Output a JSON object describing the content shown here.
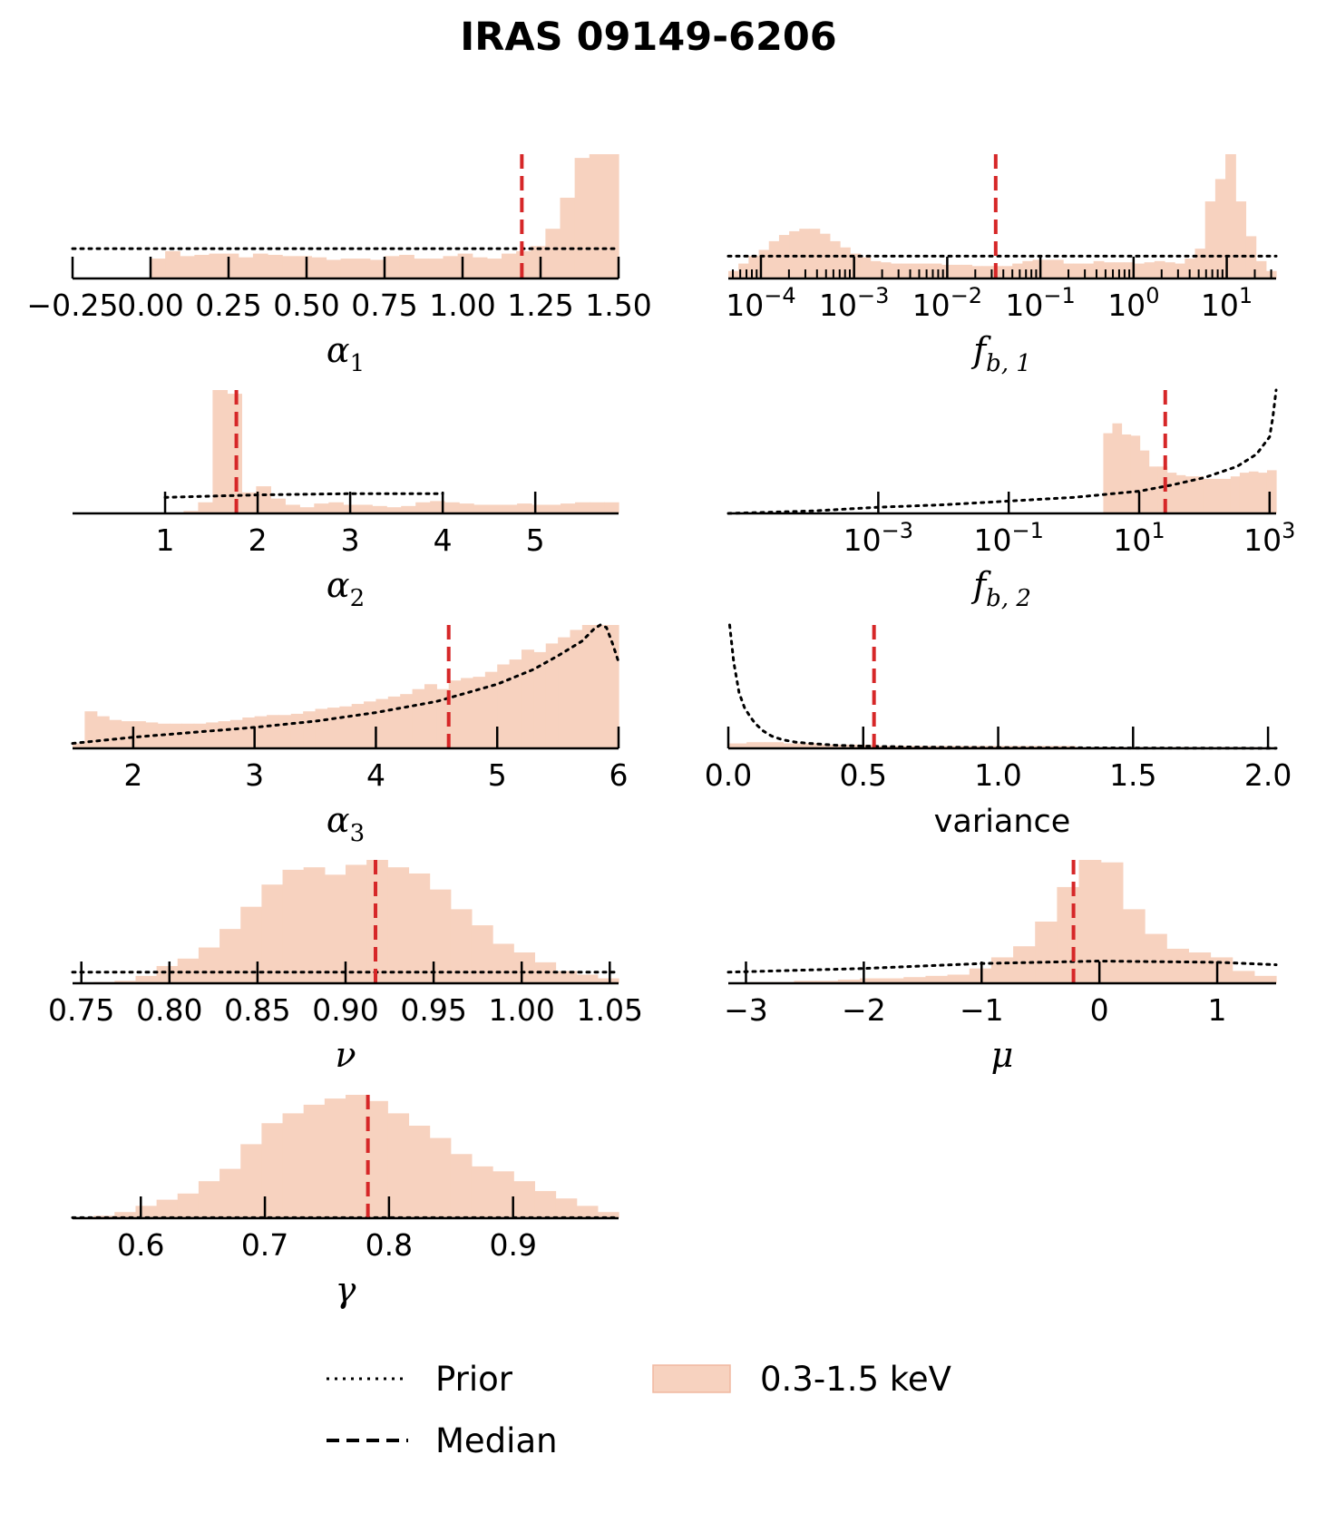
{
  "figure_title": "IRAS 09149-6206",
  "colors": {
    "hist": "#f7d2bf",
    "hist_edge": "#f0b8a0",
    "median": "#d62728",
    "prior": "#000000",
    "axis": "#000000"
  },
  "legend": {
    "prior_label": "Prior",
    "median_label": "Median",
    "hist_label": "0.3-1.5 keV"
  },
  "chart_data": [
    {
      "id": "alpha1",
      "type": "bar",
      "scale": "linear",
      "xlabel_sym": "α",
      "xlabel_sub": "1",
      "xlim": [
        -0.25,
        1.5
      ],
      "ticks": [
        -0.25,
        0.0,
        0.25,
        0.5,
        0.75,
        1.0,
        1.25,
        1.5
      ],
      "tick_labels": [
        "−0.25",
        "0.00",
        "0.25",
        "0.50",
        "0.75",
        "1.00",
        "1.25",
        "1.50"
      ],
      "hist_range": [
        0.0,
        1.5
      ],
      "hist": [
        0.16,
        0.22,
        0.18,
        0.19,
        0.2,
        0.2,
        0.17,
        0.2,
        0.19,
        0.18,
        0.18,
        0.17,
        0.15,
        0.16,
        0.16,
        0.15,
        0.18,
        0.19,
        0.16,
        0.16,
        0.18,
        0.2,
        0.17,
        0.16,
        0.2,
        0.22,
        0.26,
        0.4,
        0.65,
        0.97,
        1.0,
        1.0
      ],
      "median": 1.19,
      "prior": {
        "kind": "flat",
        "x": [
          -0.25,
          1.5
        ],
        "y": 0.24
      }
    },
    {
      "id": "fb1",
      "type": "bar",
      "scale": "log",
      "xlabel_sym": "f",
      "xlabel_sub": "b, 1",
      "xlim": [
        -4.35,
        1.53
      ],
      "ticks": [
        -4,
        -3,
        -2,
        -1,
        0,
        1
      ],
      "tick_labels": [
        [
          "10",
          "−4"
        ],
        [
          "10",
          "−3"
        ],
        [
          "10",
          "−2"
        ],
        [
          "10",
          "−1"
        ],
        [
          "10",
          "0"
        ],
        [
          "10",
          "1"
        ]
      ],
      "minor_ticks": true,
      "hist_range": [
        -4.35,
        1.53
      ],
      "hist": [
        0.06,
        0.12,
        0.18,
        0.23,
        0.3,
        0.35,
        0.38,
        0.4,
        0.4,
        0.36,
        0.3,
        0.25,
        0.2,
        0.17,
        0.14,
        0.13,
        0.12,
        0.12,
        0.12,
        0.12,
        0.12,
        0.11,
        0.11,
        0.11,
        0.1,
        0.1,
        0.1,
        0.1,
        0.12,
        0.14,
        0.15,
        0.15,
        0.15,
        0.12,
        0.12,
        0.12,
        0.14,
        0.13,
        0.13,
        0.13,
        0.12,
        0.13,
        0.14,
        0.13,
        0.12,
        0.16,
        0.24,
        0.62,
        0.8,
        1.0,
        0.62,
        0.34,
        0.14,
        0.06
      ],
      "median": -1.48,
      "prior": {
        "kind": "flat",
        "x": [
          -4.35,
          1.53
        ],
        "y": 0.18
      }
    },
    {
      "id": "alpha2",
      "type": "bar",
      "scale": "linear",
      "xlabel_sym": "α",
      "xlabel_sub": "2",
      "xlim": [
        0.0,
        5.9
      ],
      "ticks": [
        1,
        2,
        3,
        4,
        5
      ],
      "tick_labels": [
        "1",
        "2",
        "3",
        "4",
        "5"
      ],
      "hist_range": [
        1.2,
        5.9
      ],
      "hist": [
        0.02,
        0.09,
        1.0,
        0.97,
        0.17,
        0.22,
        0.12,
        0.07,
        0.05,
        0.08,
        0.09,
        0.07,
        0.07,
        0.06,
        0.05,
        0.06,
        0.09,
        0.1,
        0.09,
        0.08,
        0.07,
        0.07,
        0.07,
        0.08,
        0.07,
        0.07,
        0.08,
        0.09,
        0.09,
        0.09
      ],
      "median": 1.77,
      "prior": {
        "kind": "curve",
        "x": [
          1.0,
          2.0,
          3.0,
          4.0
        ],
        "y": [
          0.13,
          0.15,
          0.16,
          0.16
        ]
      }
    },
    {
      "id": "fb2",
      "type": "bar",
      "scale": "log",
      "xlabel_sym": "f",
      "xlabel_sub": "b, 2",
      "xlim": [
        -5.3,
        3.1
      ],
      "ticks": [
        -3,
        -1,
        1,
        3
      ],
      "tick_labels": [
        [
          "10",
          "−3"
        ],
        [
          "10",
          "−1"
        ],
        [
          "10",
          "1"
        ],
        [
          "10",
          "3"
        ]
      ],
      "hist_range": [
        0.45,
        3.1
      ],
      "hist": [
        0.65,
        0.73,
        0.64,
        0.63,
        0.51,
        0.38,
        0.38,
        0.33,
        0.31,
        0.3,
        0.3,
        0.28,
        0.28,
        0.28,
        0.3,
        0.33,
        0.34,
        0.33,
        0.35
      ],
      "median": 1.4,
      "prior": {
        "kind": "curve",
        "x": [
          -5.3,
          -4,
          -3,
          -2,
          -1,
          0,
          1,
          1.5,
          2,
          2.5,
          2.8,
          3.0,
          3.05,
          3.1
        ],
        "y": [
          0.0,
          0.02,
          0.05,
          0.07,
          0.1,
          0.13,
          0.18,
          0.23,
          0.29,
          0.38,
          0.48,
          0.62,
          0.78,
          1.0
        ]
      }
    },
    {
      "id": "alpha3",
      "type": "bar",
      "scale": "linear",
      "xlabel_sym": "α",
      "xlabel_sub": "3",
      "xlim": [
        1.5,
        6.0
      ],
      "ticks": [
        2,
        3,
        4,
        5,
        6
      ],
      "tick_labels": [
        "2",
        "3",
        "4",
        "5",
        "6"
      ],
      "hist_range": [
        1.5,
        6.0
      ],
      "hist": [
        0.04,
        0.3,
        0.26,
        0.23,
        0.22,
        0.22,
        0.21,
        0.2,
        0.2,
        0.2,
        0.2,
        0.21,
        0.22,
        0.23,
        0.25,
        0.26,
        0.27,
        0.27,
        0.28,
        0.3,
        0.32,
        0.33,
        0.34,
        0.36,
        0.38,
        0.4,
        0.42,
        0.44,
        0.48,
        0.52,
        0.48,
        0.55,
        0.57,
        0.58,
        0.62,
        0.68,
        0.72,
        0.8,
        0.78,
        0.85,
        0.9,
        0.96,
        1.0,
        1.0,
        1.0
      ],
      "median": 4.6,
      "prior": {
        "kind": "curve",
        "x": [
          1.5,
          2.0,
          2.5,
          3.0,
          3.5,
          4.0,
          4.5,
          5.0,
          5.3,
          5.5,
          5.7,
          5.8,
          5.85,
          5.9,
          5.95,
          6.0
        ],
        "y": [
          0.04,
          0.09,
          0.13,
          0.17,
          0.22,
          0.29,
          0.38,
          0.52,
          0.64,
          0.75,
          0.87,
          0.97,
          1.0,
          0.98,
          0.85,
          0.7
        ]
      }
    },
    {
      "id": "variance",
      "type": "bar",
      "scale": "linear",
      "xlabel_text": "variance",
      "xlim": [
        0.0,
        2.03
      ],
      "ticks": [
        0.0,
        0.5,
        1.0,
        1.5,
        2.0
      ],
      "tick_labels": [
        "0.0",
        "0.5",
        "1.0",
        "1.5",
        "2.0"
      ],
      "hist_range": [
        0.0,
        2.03
      ],
      "hist": [
        0.04,
        0.05,
        0.05,
        0.04,
        0.04,
        0.03,
        0.03,
        0.03,
        0.02,
        0.02,
        0.02,
        0.02,
        0.02,
        0.02,
        0.02,
        0.02,
        0.02,
        0.02,
        0.02,
        0.01,
        0.01,
        0.01,
        0.01,
        0.01,
        0.01,
        0.01,
        0.01,
        0.01,
        0.01,
        0.01
      ],
      "median": 0.54,
      "prior": {
        "kind": "curve",
        "x": [
          0.005,
          0.02,
          0.04,
          0.06,
          0.08,
          0.1,
          0.13,
          0.16,
          0.2,
          0.25,
          0.3,
          0.4,
          0.5,
          0.7,
          1.0,
          1.5,
          2.03
        ],
        "y": [
          1.0,
          0.7,
          0.45,
          0.33,
          0.26,
          0.2,
          0.14,
          0.1,
          0.07,
          0.05,
          0.04,
          0.025,
          0.018,
          0.01,
          0.006,
          0.003,
          0.001
        ]
      }
    },
    {
      "id": "nu",
      "type": "bar",
      "scale": "linear",
      "xlabel_sym": "ν",
      "xlabel_sub": "",
      "xlim": [
        0.745,
        1.055
      ],
      "ticks": [
        0.75,
        0.8,
        0.85,
        0.9,
        0.95,
        1.0,
        1.05
      ],
      "tick_labels": [
        "0.75",
        "0.80",
        "0.85",
        "0.90",
        "0.95",
        "1.00",
        "1.05"
      ],
      "hist_range": [
        0.745,
        1.055
      ],
      "hist": [
        0.0,
        0.01,
        0.02,
        0.06,
        0.14,
        0.2,
        0.29,
        0.44,
        0.62,
        0.8,
        0.92,
        0.94,
        0.88,
        0.96,
        1.0,
        0.94,
        0.89,
        0.76,
        0.6,
        0.47,
        0.32,
        0.25,
        0.17,
        0.1,
        0.07,
        0.04
      ],
      "median": 0.917,
      "prior": {
        "kind": "flat",
        "x": [
          0.745,
          1.055
        ],
        "y": 0.09
      }
    },
    {
      "id": "mu",
      "type": "bar",
      "scale": "linear",
      "xlabel_sym": "μ",
      "xlabel_sub": "",
      "xlim": [
        -3.15,
        1.5
      ],
      "ticks": [
        -3,
        -2,
        -1,
        0,
        1
      ],
      "tick_labels": [
        "−3",
        "−2",
        "−1",
        "0",
        "1"
      ],
      "hist_range": [
        -3.15,
        1.5
      ],
      "hist": [
        0.0,
        0.01,
        0.01,
        0.02,
        0.02,
        0.03,
        0.04,
        0.04,
        0.05,
        0.06,
        0.07,
        0.12,
        0.21,
        0.3,
        0.5,
        0.78,
        1.0,
        0.98,
        0.6,
        0.4,
        0.28,
        0.25,
        0.21,
        0.1,
        0.06
      ],
      "median": -0.22,
      "prior": {
        "kind": "curve",
        "x": [
          -3.15,
          -2.0,
          -1.0,
          0.0,
          1.0,
          1.5
        ],
        "y": [
          0.09,
          0.12,
          0.16,
          0.18,
          0.17,
          0.15
        ]
      }
    },
    {
      "id": "gamma",
      "type": "bar",
      "scale": "linear",
      "xlabel_sym": "γ",
      "xlabel_sub": "",
      "xlim": [
        0.545,
        0.985
      ],
      "ticks": [
        0.6,
        0.7,
        0.8,
        0.9
      ],
      "tick_labels": [
        "0.6",
        "0.7",
        "0.8",
        "0.9"
      ],
      "hist_range": [
        0.545,
        0.985
      ],
      "hist": [
        0.0,
        0.02,
        0.05,
        0.1,
        0.15,
        0.2,
        0.3,
        0.4,
        0.6,
        0.77,
        0.85,
        0.92,
        0.97,
        1.0,
        0.95,
        0.85,
        0.75,
        0.65,
        0.52,
        0.42,
        0.38,
        0.3,
        0.22,
        0.16,
        0.1,
        0.05
      ],
      "median": 0.783,
      "prior": {
        "kind": "flat",
        "x": [
          0.545,
          0.985
        ],
        "y": 0.005
      }
    }
  ]
}
